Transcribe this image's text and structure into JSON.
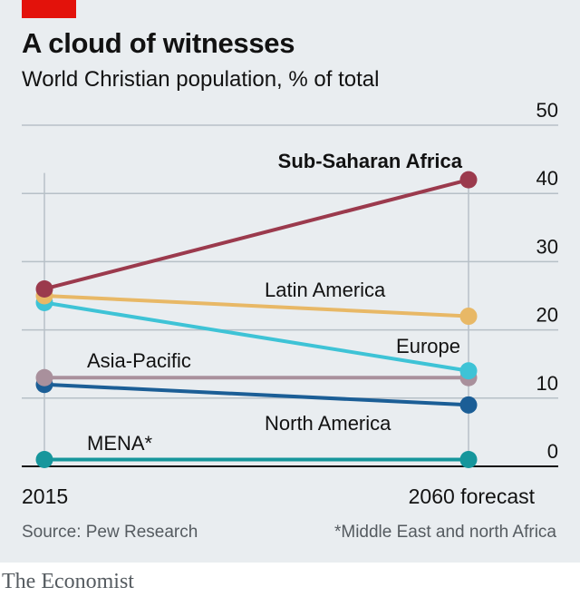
{
  "header": {
    "title": "A cloud of witnesses",
    "subtitle": "World Christian population, % of total"
  },
  "chart_data": {
    "type": "line",
    "x": [
      "2015",
      "2060 forecast"
    ],
    "ylim": [
      0,
      50
    ],
    "yticks": [
      0,
      10,
      20,
      30,
      40,
      50
    ],
    "grid": true,
    "series": [
      {
        "name": "MENA*",
        "values": [
          1,
          1
        ],
        "color": "#16969c"
      },
      {
        "name": "North America",
        "values": [
          12,
          9
        ],
        "color": "#1b5e96"
      },
      {
        "name": "Asia-Pacific",
        "values": [
          13,
          13
        ],
        "color": "#a9909c"
      },
      {
        "name": "Europe",
        "values": [
          24,
          14
        ],
        "color": "#3ec3d6"
      },
      {
        "name": "Latin America",
        "values": [
          25,
          22
        ],
        "color": "#e8b866"
      },
      {
        "name": "Sub-Saharan Africa",
        "values": [
          26,
          42
        ],
        "color": "#9b3a4d"
      }
    ]
  },
  "footer": {
    "source": "Source: Pew Research",
    "note": "*Middle East and north Africa",
    "brand": "The Economist"
  }
}
